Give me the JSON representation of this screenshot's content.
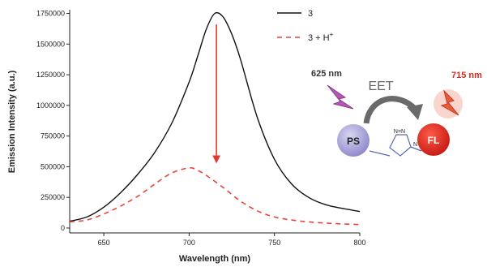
{
  "chart_data": {
    "type": "line",
    "xlabel": "Wavelength (nm)",
    "ylabel": "Emission Intensity (a.u.)",
    "xlim": [
      630,
      800
    ],
    "ylim": [
      -40000,
      1780000
    ],
    "x_ticks": [
      "650",
      "700",
      "750",
      "800"
    ],
    "x_tick_values": [
      650,
      700,
      750,
      800
    ],
    "y_ticks": [
      "0",
      "250000",
      "500000",
      "750000",
      "1000000",
      "1250000",
      "1500000",
      "1750000"
    ],
    "y_tick_values": [
      0,
      250000,
      500000,
      750000,
      1000000,
      1250000,
      1500000,
      1750000
    ],
    "grid": false,
    "legend_position": "top-right",
    "series": [
      {
        "name": "3",
        "color": "#111111",
        "style": "solid",
        "x": [
          630,
          640,
          650,
          660,
          670,
          680,
          690,
          700,
          705,
          710,
          715,
          720,
          725,
          730,
          740,
          750,
          760,
          770,
          780,
          790,
          800
        ],
        "y": [
          55000,
          90000,
          170000,
          290000,
          440000,
          620000,
          860000,
          1190000,
          1400000,
          1620000,
          1750000,
          1720000,
          1580000,
          1380000,
          900000,
          560000,
          360000,
          250000,
          190000,
          160000,
          135000
        ]
      },
      {
        "name": "3 + H",
        "name_superscript": "+",
        "color": "#e8443a",
        "style": "dashed",
        "x": [
          630,
          640,
          650,
          660,
          670,
          680,
          690,
          700,
          705,
          710,
          720,
          730,
          740,
          750,
          760,
          770,
          780,
          790,
          800
        ],
        "y": [
          50000,
          65000,
          115000,
          180000,
          260000,
          360000,
          450000,
          490000,
          470000,
          430000,
          330000,
          220000,
          140000,
          90000,
          65000,
          50000,
          40000,
          33000,
          28000
        ]
      }
    ],
    "annotations": {
      "arrow_color": "#e03a2f",
      "arrow_from": {
        "x": 716,
        "y": 1660000
      },
      "arrow_to": {
        "x": 716,
        "y": 560000
      }
    }
  },
  "scheme": {
    "excitation_label": "625 nm",
    "transfer_label": "EET",
    "emission_label": "715 nm",
    "donor_label": "PS",
    "acceptor_label": "FL",
    "triazole_label": "N=N",
    "triazole_n": "N",
    "colors": {
      "donor": "#a6a2d8",
      "acceptor": "#e3221b",
      "lightning_excite": "#b457b4",
      "lightning_emit": "#e85c3a",
      "arrow": "#6a6a6a",
      "emission_text": "#d42a1c"
    }
  }
}
